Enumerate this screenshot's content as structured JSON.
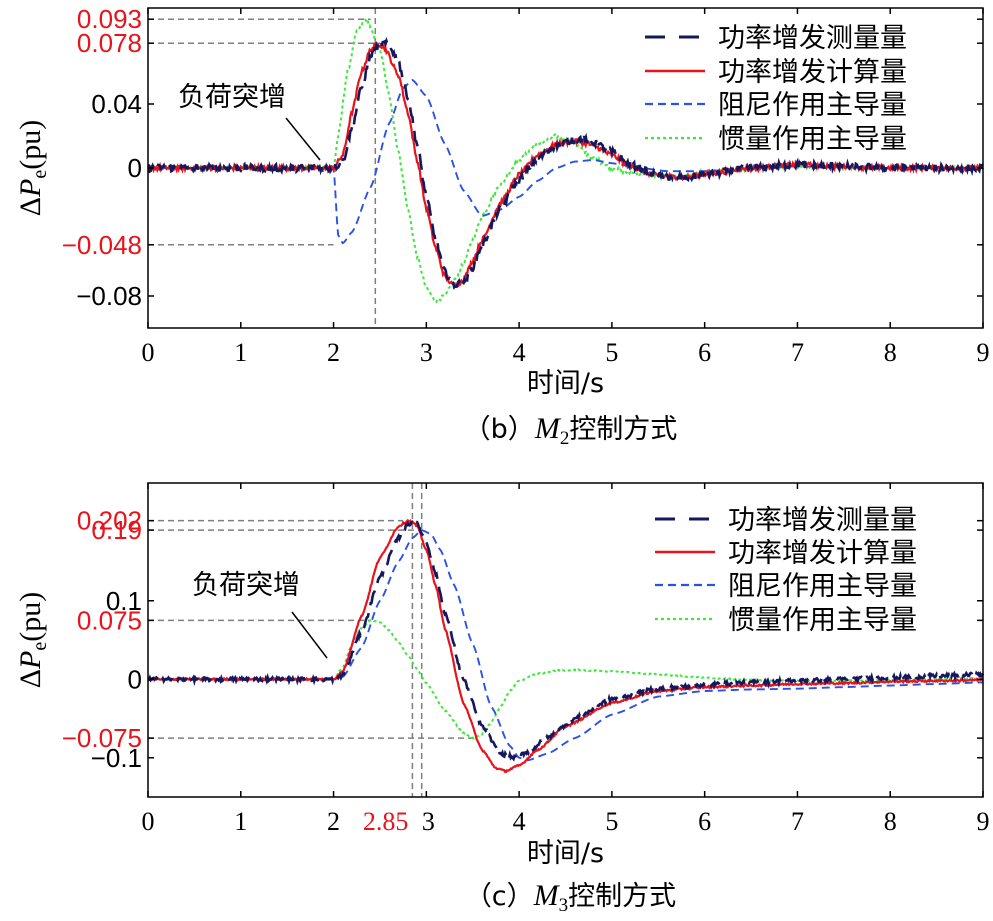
{
  "colors": {
    "measured": "#16185e",
    "calculated": "#e8131b",
    "damping": "#2a52e6",
    "inertia": "#3ce83c",
    "highlight": "#e8131b",
    "guide": "#7f7f7f"
  },
  "chart_data": [
    {
      "type": "line",
      "caption_prefix": "（b）",
      "caption_var": "M",
      "caption_sub": "2",
      "caption_suffix": "控制方式",
      "xlabel": "时间/s",
      "ylabel_delta": "Δ",
      "ylabel_var": "P",
      "ylabel_sub": "e",
      "ylabel_unit": "(pu)",
      "xlim": [
        0,
        9
      ],
      "ylim": [
        -0.1,
        0.1
      ],
      "x_ticks": [
        {
          "v": 0,
          "label": "0"
        },
        {
          "v": 1,
          "label": "1"
        },
        {
          "v": 2,
          "label": "2"
        },
        {
          "v": 3,
          "label": "3"
        },
        {
          "v": 4,
          "label": "4"
        },
        {
          "v": 5,
          "label": "5"
        },
        {
          "v": 6,
          "label": "6"
        },
        {
          "v": 7,
          "label": "7"
        },
        {
          "v": 8,
          "label": "8"
        },
        {
          "v": 9,
          "label": "9"
        }
      ],
      "y_ticks": [
        {
          "v": 0.093,
          "label": "0.093",
          "highlight": true
        },
        {
          "v": 0.078,
          "label": "0.078",
          "highlight": true
        },
        {
          "v": 0.04,
          "label": "0.04",
          "highlight": false
        },
        {
          "v": 0,
          "label": "0",
          "highlight": false
        },
        {
          "v": -0.048,
          "label": "−0.048",
          "highlight": true
        },
        {
          "v": -0.08,
          "label": "−0.08",
          "highlight": false
        }
      ],
      "guide_h": [
        {
          "y": 0.093,
          "x_end": 2.4
        },
        {
          "y": 0.078,
          "x_end": 2.5
        },
        {
          "y": 0,
          "x_end": 2.0
        },
        {
          "y": -0.048,
          "x_end": 2.0
        }
      ],
      "guide_v": [
        2.45
      ],
      "annotation": {
        "text": "负荷突增",
        "x": 1.95,
        "y": 0.005
      },
      "legend": {
        "position": "top-right",
        "entries": [
          {
            "label": "功率增发测量量",
            "series": "measured"
          },
          {
            "label": "功率增发计算量",
            "series": "calculated"
          },
          {
            "label": "阻尼作用主导量",
            "series": "damping"
          },
          {
            "label": "惯量作用主导量",
            "series": "inertia"
          }
        ]
      },
      "series": [
        {
          "key": "measured",
          "label": "功率增发测量量",
          "noise": 0.0022,
          "x": [
            0,
            2.0,
            2.1,
            2.2,
            2.3,
            2.4,
            2.5,
            2.6,
            2.7,
            2.8,
            2.9,
            3.0,
            3.1,
            3.2,
            3.3,
            3.4,
            3.5,
            3.6,
            3.8,
            4.0,
            4.2,
            4.4,
            4.6,
            4.7,
            4.8,
            5.0,
            5.2,
            5.5,
            5.8,
            6.0,
            6.5,
            7.0,
            7.5,
            8.0,
            9.0
          ],
          "y": [
            0,
            0,
            0.004,
            0.025,
            0.05,
            0.07,
            0.078,
            0.077,
            0.066,
            0.045,
            0.015,
            -0.018,
            -0.045,
            -0.065,
            -0.073,
            -0.072,
            -0.062,
            -0.048,
            -0.025,
            -0.007,
            0.006,
            0.014,
            0.018,
            0.018,
            0.016,
            0.01,
            0.002,
            -0.005,
            -0.006,
            -0.004,
            0.0,
            0.002,
            0.001,
            0.0,
            0.0
          ]
        },
        {
          "key": "calculated",
          "label": "功率增发计算量",
          "noise": 0.0015,
          "x": [
            0,
            2.0,
            2.1,
            2.2,
            2.3,
            2.4,
            2.48,
            2.55,
            2.7,
            2.8,
            2.9,
            3.0,
            3.1,
            3.2,
            3.3,
            3.4,
            3.5,
            3.6,
            3.8,
            4.0,
            4.2,
            4.4,
            4.6,
            4.7,
            4.8,
            5.0,
            5.2,
            5.5,
            5.8,
            6.0,
            6.5,
            7.0,
            7.5,
            8.0,
            9.0
          ],
          "y": [
            0,
            0,
            0.008,
            0.035,
            0.06,
            0.074,
            0.078,
            0.075,
            0.058,
            0.035,
            0.005,
            -0.025,
            -0.05,
            -0.068,
            -0.074,
            -0.07,
            -0.058,
            -0.045,
            -0.022,
            -0.004,
            0.008,
            0.015,
            0.017,
            0.016,
            0.014,
            0.008,
            0.001,
            -0.005,
            -0.006,
            -0.004,
            0.0,
            0.002,
            0.001,
            0.0,
            0.0
          ]
        },
        {
          "key": "damping",
          "label": "阻尼作用主导量",
          "noise": 0.0,
          "x": [
            0,
            2.0,
            2.05,
            2.1,
            2.2,
            2.4,
            2.6,
            2.75,
            2.85,
            3.0,
            3.2,
            3.4,
            3.6,
            3.8,
            4.0,
            4.2,
            4.4,
            4.6,
            4.8,
            5.0,
            5.3,
            5.6,
            6.0,
            6.5,
            7.0,
            8.0,
            9.0
          ],
          "y": [
            0,
            0,
            -0.042,
            -0.047,
            -0.04,
            -0.012,
            0.028,
            0.05,
            0.055,
            0.045,
            0.015,
            -0.014,
            -0.03,
            -0.026,
            -0.018,
            -0.008,
            0.0,
            0.004,
            0.005,
            0.003,
            0.0,
            -0.002,
            -0.002,
            0.0,
            0.001,
            0.0,
            0.0
          ]
        },
        {
          "key": "inertia",
          "label": "惯量作用主导量",
          "noise": 0.0012,
          "x": [
            0,
            2.0,
            2.05,
            2.15,
            2.25,
            2.35,
            2.5,
            2.6,
            2.7,
            2.8,
            2.9,
            3.0,
            3.1,
            3.2,
            3.3,
            3.4,
            3.5,
            3.6,
            3.8,
            4.0,
            4.2,
            4.4,
            4.6,
            4.8,
            5.0,
            5.2,
            5.5,
            5.8,
            6.0,
            6.5,
            7.0,
            8.0,
            9.0
          ],
          "y": [
            0,
            0,
            0.02,
            0.06,
            0.085,
            0.093,
            0.074,
            0.045,
            0.01,
            -0.025,
            -0.055,
            -0.075,
            -0.083,
            -0.08,
            -0.07,
            -0.06,
            -0.045,
            -0.03,
            -0.01,
            0.005,
            0.015,
            0.02,
            0.015,
            0.006,
            0.0,
            -0.003,
            -0.005,
            -0.005,
            -0.003,
            0.0,
            0.001,
            0.0,
            0.0
          ]
        }
      ]
    },
    {
      "type": "line",
      "caption_prefix": "（c）",
      "caption_var": "M",
      "caption_sub": "3",
      "caption_suffix": "控制方式",
      "xlabel": "时间/s",
      "ylabel_delta": "Δ",
      "ylabel_var": "P",
      "ylabel_sub": "e",
      "ylabel_unit": "(pu)",
      "xlim": [
        0,
        9
      ],
      "ylim": [
        -0.15,
        0.25
      ],
      "x_ticks": [
        {
          "v": 0,
          "label": "0"
        },
        {
          "v": 1,
          "label": "1"
        },
        {
          "v": 2,
          "label": "2"
        },
        {
          "v": 2.85,
          "label": "2.85",
          "highlight": true
        },
        {
          "v": 3,
          "label": "3"
        },
        {
          "v": 4,
          "label": "4"
        },
        {
          "v": 5,
          "label": "5"
        },
        {
          "v": 6,
          "label": "6"
        },
        {
          "v": 7,
          "label": "7"
        },
        {
          "v": 8,
          "label": "8"
        },
        {
          "v": 9,
          "label": "9"
        }
      ],
      "y_ticks": [
        {
          "v": 0.202,
          "label": "0.202",
          "highlight": true
        },
        {
          "v": 0.19,
          "label": "0.19",
          "highlight": true
        },
        {
          "v": 0.1,
          "label": "0.1",
          "highlight": false
        },
        {
          "v": 0.075,
          "label": "0.075",
          "highlight": true
        },
        {
          "v": 0,
          "label": "0",
          "highlight": false
        },
        {
          "v": -0.075,
          "label": "−0.075",
          "highlight": true
        },
        {
          "v": -0.1,
          "label": "−0.1",
          "highlight": false
        }
      ],
      "guide_h": [
        {
          "y": 0.202,
          "x_end": 2.75
        },
        {
          "y": 0.19,
          "x_end": 2.95
        },
        {
          "y": 0.075,
          "x_end": 2.4
        },
        {
          "y": 0,
          "x_end": 2.0
        },
        {
          "y": -0.075,
          "x_end": 3.5
        }
      ],
      "guide_v": [
        2.85,
        2.95
      ],
      "annotation": {
        "text": "负荷突增",
        "x": 1.95,
        "y": 0.03
      },
      "legend": {
        "position": "top-right",
        "entries": [
          {
            "label": "功率增发测量量",
            "series": "measured"
          },
          {
            "label": "功率增发计算量",
            "series": "calculated"
          },
          {
            "label": "阻尼作用主导量",
            "series": "damping"
          },
          {
            "label": "惯量作用主导量",
            "series": "inertia"
          }
        ]
      },
      "series": [
        {
          "key": "measured",
          "label": "功率增发测量量",
          "noise": 0.0025,
          "x": [
            0,
            2.0,
            2.1,
            2.3,
            2.5,
            2.7,
            2.8,
            2.85,
            2.9,
            3.0,
            3.1,
            3.2,
            3.4,
            3.6,
            3.8,
            3.95,
            4.1,
            4.3,
            4.6,
            5.0,
            5.5,
            6.0,
            6.5,
            7.0,
            7.5,
            8.0,
            8.5,
            9.0
          ],
          "y": [
            0,
            0,
            0.005,
            0.06,
            0.13,
            0.18,
            0.197,
            0.2,
            0.198,
            0.175,
            0.135,
            0.085,
            0.0,
            -0.06,
            -0.095,
            -0.1,
            -0.092,
            -0.075,
            -0.05,
            -0.025,
            -0.012,
            -0.007,
            -0.004,
            -0.002,
            0.0,
            0.002,
            0.004,
            0.006
          ]
        },
        {
          "key": "calculated",
          "label": "功率增发计算量",
          "noise": 0.0012,
          "x": [
            0,
            2.0,
            2.1,
            2.3,
            2.5,
            2.7,
            2.8,
            2.85,
            2.9,
            3.0,
            3.1,
            3.2,
            3.4,
            3.6,
            3.75,
            3.85,
            4.0,
            4.2,
            4.5,
            5.0,
            5.5,
            6.0,
            6.5,
            7.0,
            7.5,
            8.0,
            8.5,
            9.0
          ],
          "y": [
            0,
            0,
            0.01,
            0.08,
            0.155,
            0.195,
            0.202,
            0.2,
            0.195,
            0.165,
            0.12,
            0.065,
            -0.03,
            -0.09,
            -0.113,
            -0.117,
            -0.11,
            -0.09,
            -0.06,
            -0.03,
            -0.015,
            -0.01,
            -0.008,
            -0.006,
            -0.005,
            -0.003,
            -0.002,
            -0.001
          ]
        },
        {
          "key": "damping",
          "label": "阻尼作用主导量",
          "noise": 0.0,
          "x": [
            0,
            2.0,
            2.1,
            2.3,
            2.5,
            2.7,
            2.85,
            2.95,
            3.05,
            3.15,
            3.3,
            3.5,
            3.7,
            3.9,
            4.0,
            4.1,
            4.3,
            4.6,
            5.0,
            5.5,
            6.0,
            6.5,
            7.0,
            7.5,
            8.0,
            8.5,
            9.0
          ],
          "y": [
            0,
            0,
            0.003,
            0.04,
            0.1,
            0.15,
            0.18,
            0.19,
            0.185,
            0.165,
            0.12,
            0.045,
            -0.035,
            -0.085,
            -0.1,
            -0.103,
            -0.095,
            -0.075,
            -0.045,
            -0.022,
            -0.015,
            -0.013,
            -0.012,
            -0.01,
            -0.008,
            -0.006,
            -0.004
          ]
        },
        {
          "key": "inertia",
          "label": "惯量作用主导量",
          "noise": 0.0008,
          "x": [
            0,
            2.0,
            2.1,
            2.2,
            2.3,
            2.4,
            2.5,
            2.6,
            2.7,
            2.8,
            2.9,
            3.0,
            3.2,
            3.4,
            3.5,
            3.6,
            3.7,
            3.8,
            3.9,
            4.0,
            4.2,
            4.4,
            4.6,
            4.8,
            5.0,
            5.5,
            6.0,
            6.5,
            7.0,
            7.5,
            8.0,
            8.5,
            9.0
          ],
          "y": [
            0,
            0,
            0.015,
            0.045,
            0.065,
            0.075,
            0.073,
            0.062,
            0.047,
            0.03,
            0.013,
            -0.005,
            -0.04,
            -0.068,
            -0.075,
            -0.07,
            -0.055,
            -0.035,
            -0.015,
            -0.002,
            0.007,
            0.011,
            0.012,
            0.011,
            0.01,
            0.006,
            0.002,
            -0.001,
            -0.002,
            -0.002,
            -0.001,
            0.0,
            0.001
          ]
        }
      ]
    }
  ]
}
